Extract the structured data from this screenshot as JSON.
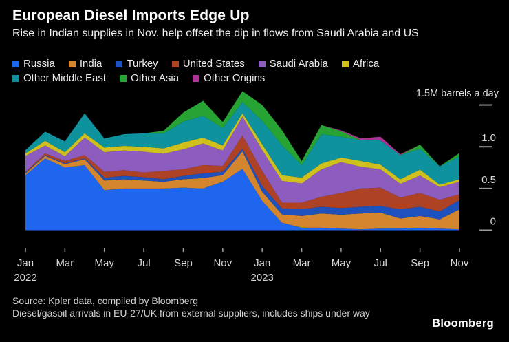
{
  "footer": {
    "source": "Source: Kpler data, compiled by Bloomberg",
    "note": "Diesel/gasoil arrivals in EU-27/UK from external suppliers, includes ships under way",
    "logo": "Bloomberg"
  },
  "chart_data": {
    "type": "area",
    "stacked": true,
    "title": "European Diesel Imports Edge Up",
    "subtitle": "Rise in Indian supplies in Nov. help offset the dip in flows from Saudi Arabia and US",
    "unit_label": "1.5M barrels a day",
    "legend_position": "top",
    "grid": false,
    "y_axis_side": "right",
    "ylim": [
      0,
      1.5
    ],
    "y_ticks": [
      {
        "value": 0,
        "label": "0"
      },
      {
        "value": 0.5,
        "label": "0.5"
      },
      {
        "value": 1,
        "label": "1.0"
      },
      {
        "value": 1.5,
        "label": ""
      }
    ],
    "x_categories": [
      "Jan 2022",
      "Feb 2022",
      "Mar 2022",
      "Apr 2022",
      "May 2022",
      "Jun 2022",
      "Jul 2022",
      "Aug 2022",
      "Sep 2022",
      "Oct 2022",
      "Nov 2022",
      "Dec 2022",
      "Jan 2023",
      "Feb 2023",
      "Mar 2023",
      "Apr 2023",
      "May 2023",
      "Jun 2023",
      "Jul 2023",
      "Aug 2023",
      "Sep 2023",
      "Oct 2023",
      "Nov 2023"
    ],
    "x_ticks": [
      {
        "index": 0,
        "label": "Jan",
        "year": "2022"
      },
      {
        "index": 2,
        "label": "Mar"
      },
      {
        "index": 4,
        "label": "May"
      },
      {
        "index": 6,
        "label": "Jul"
      },
      {
        "index": 8,
        "label": "Sep"
      },
      {
        "index": 10,
        "label": "Nov"
      },
      {
        "index": 12,
        "label": "Jan",
        "year": "2023"
      },
      {
        "index": 14,
        "label": "Mar"
      },
      {
        "index": 16,
        "label": "May"
      },
      {
        "index": 18,
        "label": "Jul"
      },
      {
        "index": 20,
        "label": "Sep"
      },
      {
        "index": 22,
        "label": "Nov"
      }
    ],
    "series": [
      {
        "name": "Russia",
        "color": "#1e66ee",
        "values": [
          0.66,
          0.86,
          0.75,
          0.78,
          0.48,
          0.5,
          0.5,
          0.5,
          0.51,
          0.5,
          0.58,
          0.735,
          0.35,
          0.09,
          0.03,
          0.03,
          0.02,
          0.01,
          0.02,
          0.02,
          0.03,
          0.02,
          0.01
        ]
      },
      {
        "name": "India",
        "color": "#d3862d",
        "values": [
          0.02,
          0.03,
          0.04,
          0.07,
          0.115,
          0.11,
          0.095,
          0.08,
          0.1,
          0.125,
          0.08,
          0.21,
          0.11,
          0.1,
          0.14,
          0.17,
          0.165,
          0.19,
          0.19,
          0.12,
          0.14,
          0.11,
          0.24
        ]
      },
      {
        "name": "Turkey",
        "color": "#1d51bd",
        "values": [
          0.01,
          0.01,
          0.01,
          0.01,
          0.035,
          0.04,
          0.04,
          0.03,
          0.04,
          0.055,
          0.04,
          0.03,
          0.07,
          0.07,
          0.08,
          0.08,
          0.08,
          0.08,
          0.08,
          0.11,
          0.11,
          0.095,
          0.11
        ]
      },
      {
        "name": "United States",
        "color": "#ad4224",
        "values": [
          0.01,
          0.02,
          0.03,
          0.04,
          0.07,
          0.07,
          0.055,
          0.1,
          0.08,
          0.1,
          0.07,
          0.16,
          0.18,
          0.07,
          0.08,
          0.12,
          0.18,
          0.22,
          0.22,
          0.14,
          0.165,
          0.14,
          0.07
        ]
      },
      {
        "name": "Saudi Arabia",
        "color": "#8c5cbe",
        "values": [
          0.19,
          0.095,
          0.055,
          0.21,
          0.235,
          0.235,
          0.25,
          0.205,
          0.24,
          0.26,
          0.185,
          0.225,
          0.25,
          0.26,
          0.23,
          0.33,
          0.37,
          0.26,
          0.22,
          0.165,
          0.21,
          0.15,
          0.15
        ]
      },
      {
        "name": "Africa",
        "color": "#d0c01e",
        "values": [
          0.03,
          0.055,
          0.05,
          0.05,
          0.055,
          0.055,
          0.06,
          0.065,
          0.08,
          0.07,
          0.06,
          0.04,
          0.07,
          0.07,
          0.07,
          0.07,
          0.055,
          0.07,
          0.055,
          0.055,
          0.07,
          0.03,
          0.03
        ]
      },
      {
        "name": "Other Middle East",
        "color": "#0e929e",
        "values": [
          0.04,
          0.11,
          0.13,
          0.24,
          0.11,
          0.14,
          0.16,
          0.18,
          0.25,
          0.26,
          0.21,
          0.135,
          0.28,
          0.36,
          0.15,
          0.35,
          0.25,
          0.25,
          0.29,
          0.29,
          0.25,
          0.22,
          0.275
        ]
      },
      {
        "name": "Other Asia",
        "color": "#26a332",
        "values": [
          0,
          0,
          0,
          0,
          0,
          0,
          0,
          0.03,
          0.11,
          0.18,
          0.07,
          0.13,
          0.19,
          0.18,
          0.05,
          0.11,
          0.065,
          0,
          0,
          0,
          0.05,
          0,
          0.04
        ]
      },
      {
        "name": "Other Origins",
        "color": "#ab3596",
        "values": [
          0,
          0,
          0,
          0,
          0,
          0,
          0,
          0,
          0,
          0,
          0,
          0,
          0,
          0,
          0,
          0,
          0.01,
          0.02,
          0.045,
          0.01,
          0,
          0,
          0
        ]
      }
    ]
  }
}
